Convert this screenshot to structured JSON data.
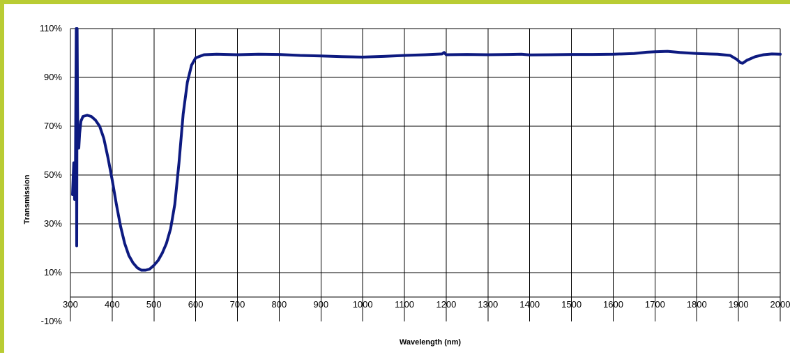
{
  "colors": {
    "frame_accent": "#b9cc33",
    "series_line": "#0d1a80",
    "grid": "#000000"
  },
  "chart_data": {
    "type": "line",
    "title": "",
    "xlabel": "Wavelength (nm)",
    "ylabel": "Transmission",
    "xlim": [
      300,
      2000
    ],
    "ylim": [
      -10,
      110
    ],
    "x_ticks": [
      300,
      400,
      500,
      600,
      700,
      800,
      900,
      1000,
      1100,
      1200,
      1300,
      1400,
      1500,
      1600,
      1700,
      1800,
      1900,
      2000
    ],
    "x_tick_labels": [
      "300",
      "400",
      "500",
      "600",
      "700",
      "800",
      "900",
      "1000",
      "1100",
      "1200",
      "1300",
      "1400",
      "1500",
      "1600",
      "1700",
      "1800",
      "1900",
      "2000"
    ],
    "y_ticks": [
      -10,
      10,
      30,
      50,
      70,
      90,
      110
    ],
    "y_tick_labels": [
      "-10%",
      "10%",
      "30%",
      "50%",
      "70%",
      "90%",
      "110%"
    ],
    "y_unit": "%",
    "grid": {
      "vertical": true,
      "horizontal": true
    },
    "legend": "none",
    "series": [
      {
        "x": [
          305,
          308,
          310,
          312,
          314,
          315,
          316,
          317,
          318,
          320,
          322,
          325,
          330,
          340,
          350,
          360,
          370,
          380,
          390,
          400,
          410,
          420,
          430,
          440,
          450,
          460,
          470,
          480,
          490,
          500,
          510,
          520,
          530,
          540,
          550,
          560,
          570,
          580,
          590,
          600,
          620,
          650,
          700,
          750,
          800,
          850,
          900,
          950,
          1000,
          1050,
          1100,
          1150,
          1190,
          1195,
          1200,
          1250,
          1300,
          1350,
          1380,
          1400,
          1450,
          1500,
          1550,
          1600,
          1650,
          1680,
          1700,
          1730,
          1760,
          1800,
          1850,
          1880,
          1895,
          1905,
          1910,
          1920,
          1940,
          1960,
          1980,
          2000
        ],
        "values": [
          42,
          55,
          40,
          52,
          110,
          21,
          110,
          78,
          62,
          61,
          67,
          72,
          74,
          74.5,
          74,
          72.5,
          70,
          65,
          57,
          48,
          38,
          29,
          22,
          17,
          14,
          12,
          11,
          11,
          11.5,
          13,
          15,
          18,
          22,
          28,
          38,
          55,
          75,
          88,
          95,
          98,
          99.3,
          99.5,
          99.3,
          99.5,
          99.4,
          99,
          98.8,
          98.5,
          98.3,
          98.6,
          99,
          99.3,
          99.6,
          100.2,
          99.3,
          99.4,
          99.3,
          99.4,
          99.5,
          99.2,
          99.3,
          99.4,
          99.4,
          99.5,
          99.8,
          100.3,
          100.5,
          100.7,
          100.2,
          99.8,
          99.5,
          99,
          97.5,
          96,
          95.8,
          97,
          98.5,
          99.3,
          99.6,
          99.5
        ]
      }
    ]
  }
}
